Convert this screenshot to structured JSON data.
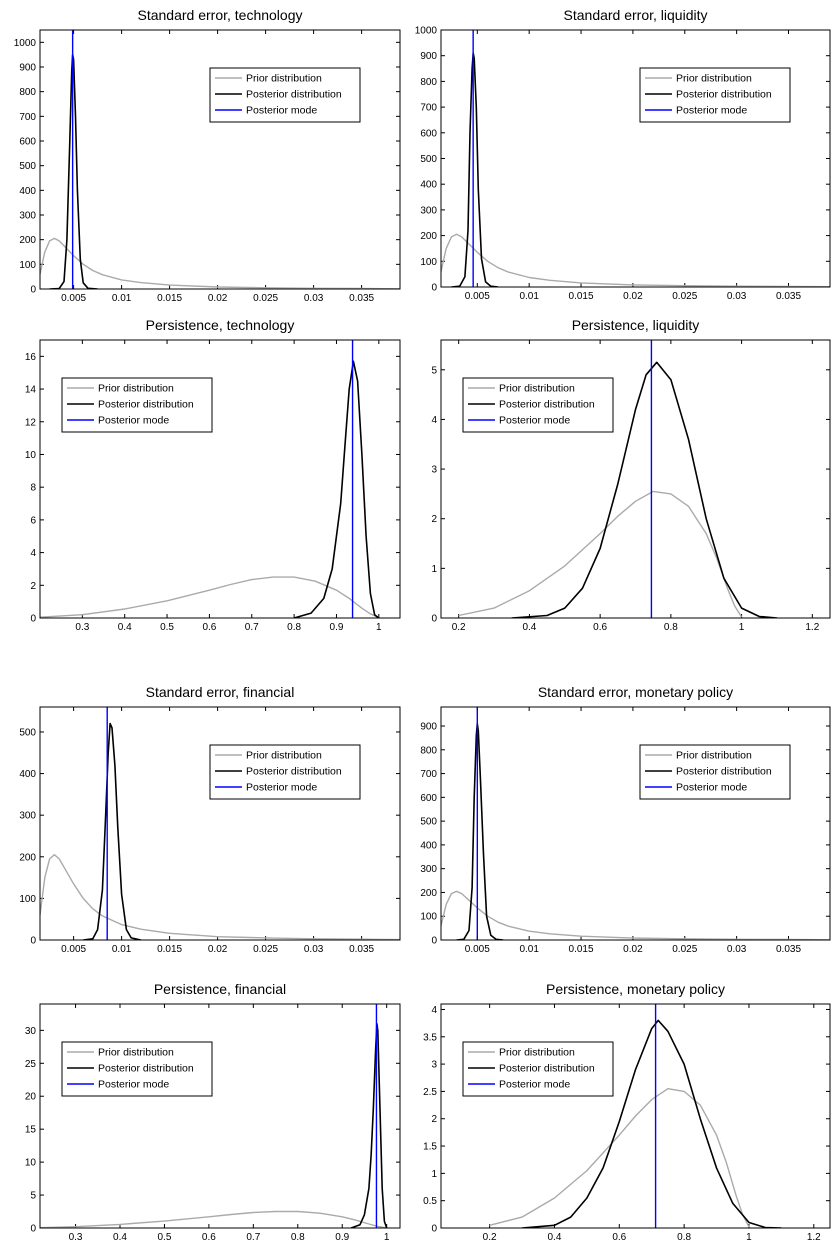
{
  "colors": {
    "prior": "#aaaaaa",
    "posterior": "#000000",
    "mode": "#0000ff"
  },
  "chart_data": [
    {
      "type": "line",
      "title": "Standard error, technology",
      "xlim": [
        0.0015,
        0.039
      ],
      "ylim": [
        0,
        1050
      ],
      "xticks": [
        0.005,
        0.01,
        0.015,
        0.02,
        0.025,
        0.03,
        0.035
      ],
      "xtick_labels": [
        "0.005",
        "0.01",
        "0.015",
        "0.02",
        "0.025",
        "0.03",
        "0.035"
      ],
      "yticks": [
        0,
        100,
        200,
        300,
        400,
        500,
        600,
        700,
        800,
        900,
        1000
      ],
      "ytick_labels": [
        "0",
        "100",
        "200",
        "300",
        "400",
        "500",
        "600",
        "700",
        "800",
        "900",
        "1000"
      ],
      "legend_position": "upper-right",
      "series": [
        {
          "name": "Prior distribution",
          "role": "prior",
          "x": [
            0.0015,
            0.002,
            0.0025,
            0.003,
            0.0035,
            0.004,
            0.005,
            0.006,
            0.007,
            0.008,
            0.01,
            0.012,
            0.015,
            0.02,
            0.025,
            0.03,
            0.035,
            0.039
          ],
          "y": [
            60,
            150,
            195,
            205,
            195,
            175,
            135,
            100,
            75,
            58,
            37,
            26,
            16,
            8,
            5,
            3,
            2,
            1
          ]
        },
        {
          "name": "Posterior distribution",
          "role": "posterior",
          "x": [
            0.0025,
            0.0035,
            0.004,
            0.0043,
            0.0046,
            0.0048,
            0.0049,
            0.005,
            0.0052,
            0.0054,
            0.0057,
            0.006,
            0.0065,
            0.0075
          ],
          "y": [
            0,
            2,
            30,
            200,
            600,
            880,
            950,
            930,
            700,
            400,
            120,
            25,
            3,
            0
          ]
        },
        {
          "name": "Posterior mode",
          "role": "mode",
          "x": [
            0.0049
          ]
        }
      ]
    },
    {
      "type": "line",
      "title": "Standard error, liquidity",
      "xlim": [
        0.0015,
        0.039
      ],
      "ylim": [
        0,
        1000
      ],
      "xticks": [
        0.005,
        0.01,
        0.015,
        0.02,
        0.025,
        0.03,
        0.035
      ],
      "xtick_labels": [
        "0.005",
        "0.01",
        "0.015",
        "0.02",
        "0.025",
        "0.03",
        "0.035"
      ],
      "yticks": [
        0,
        100,
        200,
        300,
        400,
        500,
        600,
        700,
        800,
        900,
        1000
      ],
      "ytick_labels": [
        "0",
        "100",
        "200",
        "300",
        "400",
        "500",
        "600",
        "700",
        "800",
        "900",
        "1000"
      ],
      "legend_position": "upper-right",
      "series": [
        {
          "name": "Prior distribution",
          "role": "prior",
          "x": [
            0.0015,
            0.002,
            0.0025,
            0.003,
            0.0035,
            0.004,
            0.005,
            0.006,
            0.007,
            0.008,
            0.01,
            0.012,
            0.015,
            0.02,
            0.025,
            0.03,
            0.035,
            0.039
          ],
          "y": [
            60,
            150,
            195,
            205,
            195,
            175,
            135,
            100,
            75,
            58,
            37,
            26,
            16,
            8,
            5,
            3,
            2,
            1
          ]
        },
        {
          "name": "Posterior distribution",
          "role": "posterior",
          "x": [
            0.0025,
            0.0033,
            0.0038,
            0.0041,
            0.0043,
            0.0045,
            0.0046,
            0.0047,
            0.0049,
            0.0051,
            0.0054,
            0.0058,
            0.0063,
            0.007
          ],
          "y": [
            0,
            3,
            40,
            220,
            600,
            850,
            910,
            890,
            700,
            380,
            110,
            20,
            3,
            0
          ]
        },
        {
          "name": "Posterior mode",
          "role": "mode",
          "x": [
            0.0046
          ]
        }
      ]
    },
    {
      "type": "line",
      "title": "Persistence, technology",
      "xlim": [
        0.2,
        1.05
      ],
      "ylim": [
        0,
        17
      ],
      "xticks": [
        0.3,
        0.4,
        0.5,
        0.6,
        0.7,
        0.8,
        0.9,
        1
      ],
      "xtick_labels": [
        "0.3",
        "0.4",
        "0.5",
        "0.6",
        "0.7",
        "0.8",
        "0.9",
        "1"
      ],
      "yticks": [
        0,
        2,
        4,
        6,
        8,
        10,
        12,
        14,
        16
      ],
      "ytick_labels": [
        "0",
        "2",
        "4",
        "6",
        "8",
        "10",
        "12",
        "14",
        "16"
      ],
      "legend_position": "upper-left",
      "series": [
        {
          "name": "Prior distribution",
          "role": "prior",
          "x": [
            0.2,
            0.3,
            0.4,
            0.5,
            0.6,
            0.65,
            0.7,
            0.75,
            0.8,
            0.85,
            0.9,
            0.93,
            0.96,
            0.98,
            1.0
          ],
          "y": [
            0.05,
            0.2,
            0.55,
            1.05,
            1.7,
            2.05,
            2.35,
            2.5,
            2.5,
            2.25,
            1.7,
            1.2,
            0.6,
            0.25,
            0.02
          ]
        },
        {
          "name": "Posterior distribution",
          "role": "posterior",
          "x": [
            0.8,
            0.84,
            0.87,
            0.89,
            0.91,
            0.92,
            0.93,
            0.94,
            0.95,
            0.96,
            0.97,
            0.98,
            0.99,
            1.0
          ],
          "y": [
            0,
            0.3,
            1.2,
            3,
            7,
            10.5,
            14,
            15.7,
            14.5,
            10,
            5,
            1.5,
            0.2,
            0
          ]
        },
        {
          "name": "Posterior mode",
          "role": "mode",
          "x": [
            0.938
          ]
        }
      ]
    },
    {
      "type": "line",
      "title": "Persistence, liquidity",
      "xlim": [
        0.15,
        1.25
      ],
      "ylim": [
        0,
        5.6
      ],
      "xticks": [
        0.2,
        0.4,
        0.6,
        0.8,
        1,
        1.2
      ],
      "xtick_labels": [
        "0.2",
        "0.4",
        "0.6",
        "0.8",
        "1",
        "1.2"
      ],
      "yticks": [
        0,
        1,
        2,
        3,
        4,
        5
      ],
      "ytick_labels": [
        "0",
        "1",
        "2",
        "3",
        "4",
        "5"
      ],
      "legend_position": "upper-left",
      "series": [
        {
          "name": "Prior distribution",
          "role": "prior",
          "x": [
            0.2,
            0.3,
            0.4,
            0.5,
            0.6,
            0.65,
            0.7,
            0.75,
            0.8,
            0.85,
            0.9,
            0.93,
            0.96,
            0.98,
            1.0
          ],
          "y": [
            0.05,
            0.2,
            0.55,
            1.05,
            1.7,
            2.05,
            2.35,
            2.55,
            2.5,
            2.25,
            1.7,
            1.2,
            0.6,
            0.25,
            0.02
          ]
        },
        {
          "name": "Posterior distribution",
          "role": "posterior",
          "x": [
            0.35,
            0.45,
            0.5,
            0.55,
            0.6,
            0.65,
            0.7,
            0.73,
            0.76,
            0.8,
            0.85,
            0.9,
            0.95,
            1.0,
            1.05,
            1.1
          ],
          "y": [
            0,
            0.05,
            0.2,
            0.6,
            1.4,
            2.7,
            4.2,
            4.9,
            5.15,
            4.8,
            3.6,
            2.0,
            0.8,
            0.2,
            0.03,
            0
          ]
        },
        {
          "name": "Posterior mode",
          "role": "mode",
          "x": [
            0.745
          ]
        }
      ]
    },
    {
      "type": "line",
      "title": "Standard error, financial",
      "xlim": [
        0.0015,
        0.039
      ],
      "ylim": [
        0,
        560
      ],
      "xticks": [
        0.005,
        0.01,
        0.015,
        0.02,
        0.025,
        0.03,
        0.035
      ],
      "xtick_labels": [
        "0.005",
        "0.01",
        "0.015",
        "0.02",
        "0.025",
        "0.03",
        "0.035"
      ],
      "yticks": [
        0,
        100,
        200,
        300,
        400,
        500
      ],
      "ytick_labels": [
        "0",
        "100",
        "200",
        "300",
        "400",
        "500"
      ],
      "legend_position": "upper-right",
      "series": [
        {
          "name": "Prior distribution",
          "role": "prior",
          "x": [
            0.0015,
            0.002,
            0.0025,
            0.003,
            0.0035,
            0.004,
            0.005,
            0.006,
            0.007,
            0.008,
            0.01,
            0.012,
            0.015,
            0.02,
            0.025,
            0.03,
            0.035,
            0.039
          ],
          "y": [
            60,
            150,
            195,
            205,
            195,
            175,
            135,
            100,
            75,
            58,
            37,
            26,
            16,
            8,
            5,
            3,
            2,
            1
          ]
        },
        {
          "name": "Posterior distribution",
          "role": "posterior",
          "x": [
            0.006,
            0.007,
            0.0075,
            0.008,
            0.0083,
            0.0086,
            0.0088,
            0.009,
            0.0093,
            0.0096,
            0.01,
            0.0105,
            0.011,
            0.012
          ],
          "y": [
            0,
            3,
            25,
            120,
            280,
            450,
            520,
            510,
            420,
            270,
            110,
            25,
            5,
            0
          ]
        },
        {
          "name": "Posterior mode",
          "role": "mode",
          "x": [
            0.0085
          ]
        }
      ]
    },
    {
      "type": "line",
      "title": "Standard error, monetary policy",
      "xlim": [
        0.0015,
        0.039
      ],
      "ylim": [
        0,
        980
      ],
      "xticks": [
        0.005,
        0.01,
        0.015,
        0.02,
        0.025,
        0.03,
        0.035
      ],
      "xtick_labels": [
        "0.005",
        "0.01",
        "0.015",
        "0.02",
        "0.025",
        "0.03",
        "0.035"
      ],
      "yticks": [
        0,
        100,
        200,
        300,
        400,
        500,
        600,
        700,
        800,
        900
      ],
      "ytick_labels": [
        "0",
        "100",
        "200",
        "300",
        "400",
        "500",
        "600",
        "700",
        "800",
        "900"
      ],
      "legend_position": "upper-right",
      "series": [
        {
          "name": "Prior distribution",
          "role": "prior",
          "x": [
            0.0015,
            0.002,
            0.0025,
            0.003,
            0.0035,
            0.004,
            0.005,
            0.006,
            0.007,
            0.008,
            0.01,
            0.012,
            0.015,
            0.02,
            0.025,
            0.03,
            0.035,
            0.039
          ],
          "y": [
            60,
            150,
            195,
            205,
            195,
            175,
            135,
            100,
            75,
            58,
            37,
            26,
            16,
            8,
            5,
            3,
            2,
            1
          ]
        },
        {
          "name": "Posterior distribution",
          "role": "posterior",
          "x": [
            0.003,
            0.0037,
            0.0042,
            0.0045,
            0.0047,
            0.0049,
            0.005,
            0.0051,
            0.0053,
            0.0056,
            0.0059,
            0.0063,
            0.0068,
            0.0075
          ],
          "y": [
            0,
            3,
            40,
            220,
            600,
            860,
            910,
            880,
            680,
            360,
            100,
            20,
            3,
            0
          ]
        },
        {
          "name": "Posterior mode",
          "role": "mode",
          "x": [
            0.005
          ]
        }
      ]
    },
    {
      "type": "line",
      "title": "Persistence, financial",
      "xlim": [
        0.22,
        1.03
      ],
      "ylim": [
        0,
        34
      ],
      "xticks": [
        0.3,
        0.4,
        0.5,
        0.6,
        0.7,
        0.8,
        0.9,
        1
      ],
      "xtick_labels": [
        "0.3",
        "0.4",
        "0.5",
        "0.6",
        "0.7",
        "0.8",
        "0.9",
        "1"
      ],
      "yticks": [
        0,
        5,
        10,
        15,
        20,
        25,
        30
      ],
      "ytick_labels": [
        "0",
        "5",
        "10",
        "15",
        "20",
        "25",
        "30"
      ],
      "legend_position": "upper-left",
      "series": [
        {
          "name": "Prior distribution",
          "role": "prior",
          "x": [
            0.22,
            0.3,
            0.4,
            0.5,
            0.6,
            0.65,
            0.7,
            0.75,
            0.8,
            0.85,
            0.9,
            0.93,
            0.96,
            0.98,
            1.0
          ],
          "y": [
            0.05,
            0.2,
            0.55,
            1.05,
            1.7,
            2.05,
            2.35,
            2.5,
            2.5,
            2.25,
            1.7,
            1.2,
            0.6,
            0.25,
            0.02
          ]
        },
        {
          "name": "Posterior distribution",
          "role": "posterior",
          "x": [
            0.92,
            0.94,
            0.95,
            0.96,
            0.965,
            0.97,
            0.975,
            0.978,
            0.98,
            0.985,
            0.99,
            0.995,
            1.0
          ],
          "y": [
            0,
            0.5,
            2,
            6,
            11,
            18,
            27,
            31,
            30,
            18,
            6,
            1,
            0
          ]
        },
        {
          "name": "Posterior mode",
          "role": "mode",
          "x": [
            0.977
          ]
        }
      ]
    },
    {
      "type": "line",
      "title": "Persistence, monetary policy",
      "xlim": [
        0.05,
        1.25
      ],
      "ylim": [
        0,
        4.1
      ],
      "xticks": [
        0.2,
        0.4,
        0.6,
        0.8,
        1,
        1.2
      ],
      "xtick_labels": [
        "0.2",
        "0.4",
        "0.6",
        "0.8",
        "1",
        "1.2"
      ],
      "yticks": [
        0,
        0.5,
        1,
        1.5,
        2,
        2.5,
        3,
        3.5,
        4
      ],
      "ytick_labels": [
        "0",
        "0.5",
        "1",
        "1.5",
        "2",
        "2.5",
        "3",
        "3.5",
        "4"
      ],
      "legend_position": "upper-left",
      "series": [
        {
          "name": "Prior distribution",
          "role": "prior",
          "x": [
            0.2,
            0.3,
            0.4,
            0.5,
            0.6,
            0.65,
            0.7,
            0.75,
            0.8,
            0.85,
            0.9,
            0.93,
            0.96,
            0.98,
            1.0
          ],
          "y": [
            0.05,
            0.2,
            0.55,
            1.05,
            1.7,
            2.05,
            2.35,
            2.55,
            2.5,
            2.25,
            1.7,
            1.2,
            0.6,
            0.25,
            0.02
          ]
        },
        {
          "name": "Posterior distribution",
          "role": "posterior",
          "x": [
            0.3,
            0.4,
            0.45,
            0.5,
            0.55,
            0.6,
            0.65,
            0.7,
            0.72,
            0.75,
            0.8,
            0.85,
            0.9,
            0.95,
            1.0,
            1.05,
            1.1
          ],
          "y": [
            0,
            0.05,
            0.2,
            0.55,
            1.1,
            1.95,
            2.9,
            3.65,
            3.8,
            3.6,
            3.0,
            2.0,
            1.1,
            0.45,
            0.1,
            0.01,
            0
          ]
        },
        {
          "name": "Posterior mode",
          "role": "mode",
          "x": [
            0.712
          ]
        }
      ]
    }
  ]
}
